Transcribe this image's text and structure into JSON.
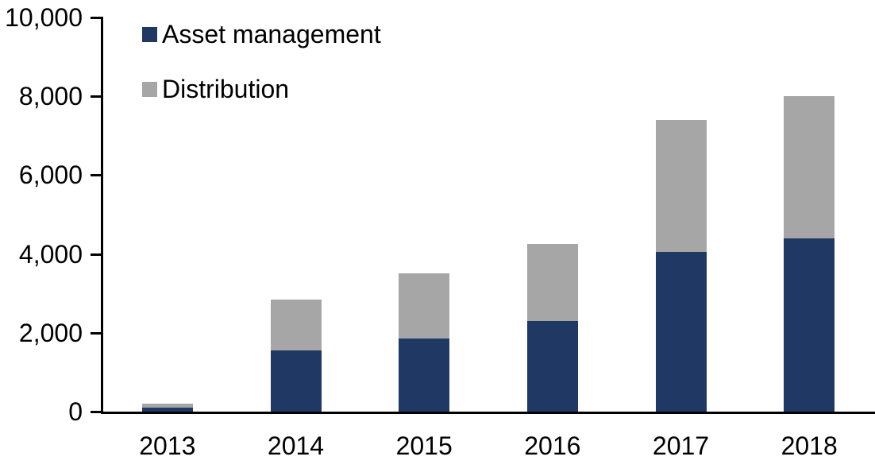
{
  "chart_data": {
    "type": "bar",
    "stacked": true,
    "title": "",
    "xlabel": "",
    "ylabel": "",
    "categories": [
      "2013",
      "2014",
      "2015",
      "2016",
      "2017",
      "2018"
    ],
    "series": [
      {
        "name": "Asset management",
        "color": "#1f3864",
        "values": [
          100,
          1550,
          1850,
          2300,
          4050,
          4400
        ]
      },
      {
        "name": "Distribution",
        "color": "#a6a6a6",
        "values": [
          100,
          1300,
          1650,
          1950,
          3350,
          3600
        ]
      }
    ],
    "ylim": [
      0,
      10000
    ],
    "ytick_interval": 2000,
    "yticklabels": [
      "0",
      "2,000",
      "4,000",
      "6,000",
      "8,000",
      "10,000"
    ],
    "grid": false,
    "legend_position": "top-left",
    "axis_color": "#000000",
    "text_color": "#000000",
    "background_color": "#ffffff"
  }
}
